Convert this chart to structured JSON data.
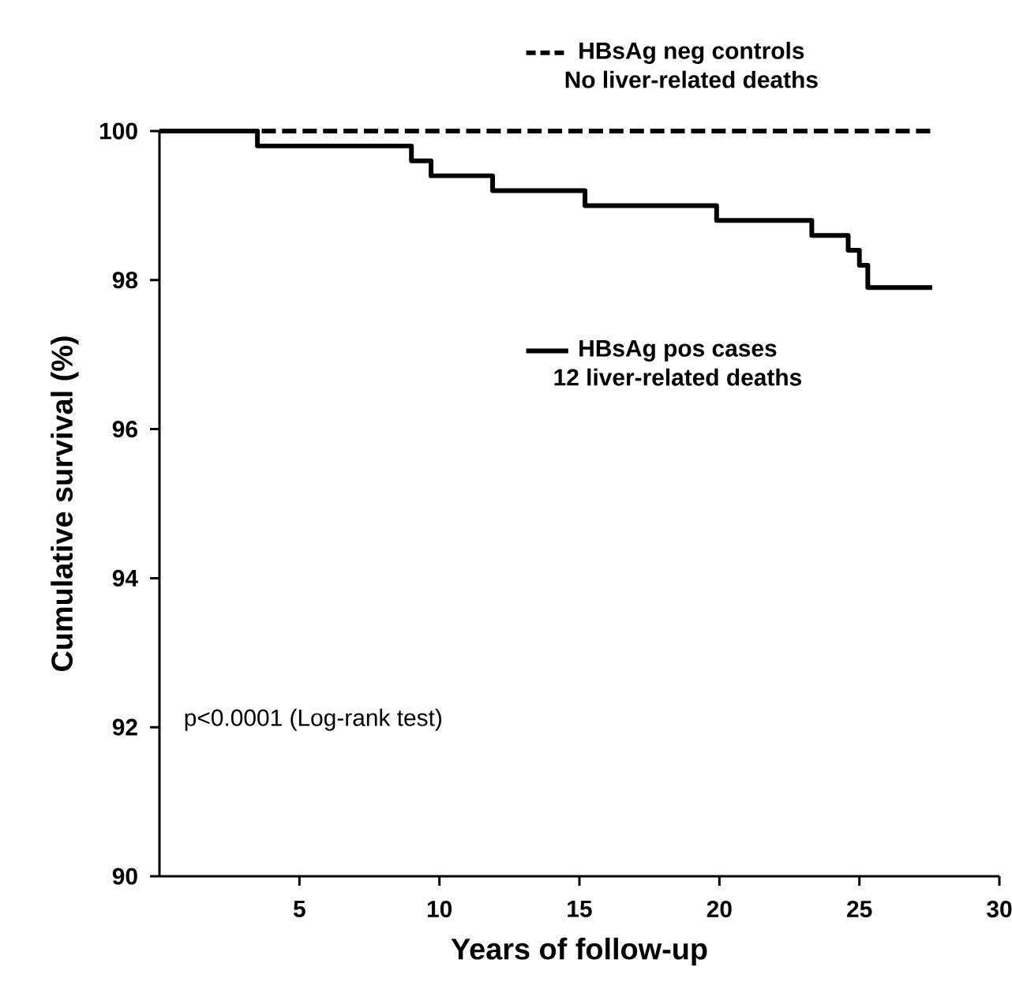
{
  "chart_data": {
    "type": "step",
    "xlabel": "Years of follow-up",
    "ylabel": "Cumulative survival (%)",
    "xlim": [
      0,
      30
    ],
    "ylim": [
      90,
      100
    ],
    "xticks": [
      5,
      10,
      15,
      20,
      25,
      30
    ],
    "yticks": [
      90,
      92,
      94,
      96,
      98,
      100
    ],
    "grid": false,
    "legend": "top right",
    "annotations": [
      "p<0.0001 (Log-rank test)",
      "No liver-related deaths",
      "12 liver-related deaths"
    ],
    "series": [
      {
        "name": "HBsAg neg controls",
        "color": "#000000",
        "line_style": "dashed",
        "x": [
          0,
          27.6
        ],
        "values": [
          100,
          100
        ]
      },
      {
        "name": "HBsAg pos cases",
        "color": "#000000",
        "line_style": "solid",
        "x": [
          0,
          3.5,
          9.0,
          9.7,
          11.9,
          15.2,
          19.9,
          23.3,
          24.6,
          25.0,
          25.3,
          27.6
        ],
        "values": [
          100,
          99.8,
          99.6,
          99.4,
          99.2,
          99.0,
          98.8,
          98.6,
          98.4,
          98.2,
          97.9,
          97.9
        ]
      }
    ]
  }
}
